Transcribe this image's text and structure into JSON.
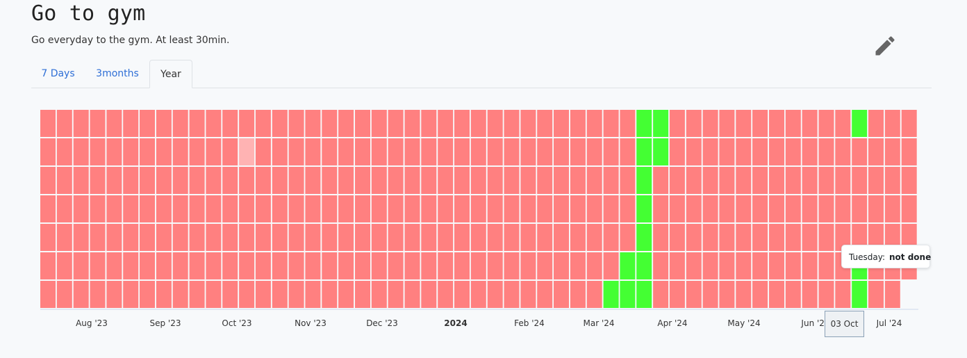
{
  "habit": {
    "title": "Go to gym",
    "description": "Go everyday to the gym. At least 30min."
  },
  "edit_button": {
    "icon": "pencil-icon",
    "color": "#666666"
  },
  "tabs": [
    {
      "label": "7 Days",
      "active": false
    },
    {
      "label": "3months",
      "active": false
    },
    {
      "label": "Year",
      "active": true
    }
  ],
  "colors": {
    "not_done": "#ff8080",
    "done": "#44ff33",
    "faded": "#ffb3b3",
    "accent": "#2f6fd6"
  },
  "chart_data": {
    "type": "heatmap",
    "rows": 7,
    "columns": 53,
    "last_column_filled_rows": 6,
    "done_cells": [
      {
        "col": 36,
        "row": 0
      },
      {
        "col": 37,
        "row": 0
      },
      {
        "col": 36,
        "row": 1
      },
      {
        "col": 37,
        "row": 1
      },
      {
        "col": 36,
        "row": 2
      },
      {
        "col": 36,
        "row": 3
      },
      {
        "col": 36,
        "row": 4
      },
      {
        "col": 35,
        "row": 5
      },
      {
        "col": 36,
        "row": 5
      },
      {
        "col": 34,
        "row": 6
      },
      {
        "col": 35,
        "row": 6
      },
      {
        "col": 36,
        "row": 6
      },
      {
        "col": 49,
        "row": 5
      },
      {
        "col": 49,
        "row": 6
      },
      {
        "col": 49,
        "row": 0
      }
    ],
    "faded_cells": [
      {
        "col": 12,
        "row": 1
      }
    ],
    "x_labels": [
      {
        "label": "Aug '23",
        "bold": false
      },
      {
        "label": "Sep '23",
        "bold": false
      },
      {
        "label": "Oct '23",
        "bold": false
      },
      {
        "label": "Nov '23",
        "bold": false
      },
      {
        "label": "Dec '23",
        "bold": false
      },
      {
        "label": "2024",
        "bold": true
      },
      {
        "label": "Feb '24",
        "bold": false
      },
      {
        "label": "Mar '24",
        "bold": false
      },
      {
        "label": "Apr '24",
        "bold": false
      },
      {
        "label": "May '24",
        "bold": false
      },
      {
        "label": "Jun '24",
        "bold": false
      },
      {
        "label": "Jul '24",
        "bold": false
      }
    ]
  },
  "tooltip": {
    "day": "Tuesday:",
    "status": "not done"
  },
  "date_tip": {
    "label": "03 Oct"
  }
}
